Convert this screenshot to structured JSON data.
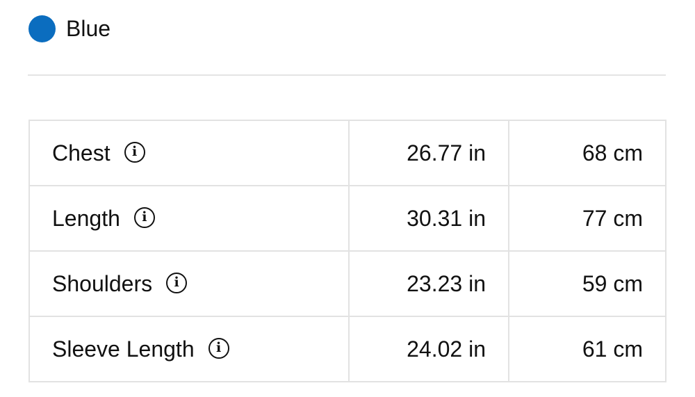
{
  "color": {
    "name": "Blue",
    "swatch": "#0b6dbf"
  },
  "measurements": [
    {
      "label": "Chest",
      "in": "26.77 in",
      "cm": "68 cm",
      "icon": "info-icon"
    },
    {
      "label": "Length",
      "in": "30.31 in",
      "cm": "77 cm",
      "icon": "info-icon"
    },
    {
      "label": "Shoulders",
      "in": "23.23 in",
      "cm": "59 cm",
      "icon": "info-icon"
    },
    {
      "label": "Sleeve Length",
      "in": "24.02 in",
      "cm": "61 cm",
      "icon": "info-icon"
    }
  ],
  "info_glyph": "i"
}
